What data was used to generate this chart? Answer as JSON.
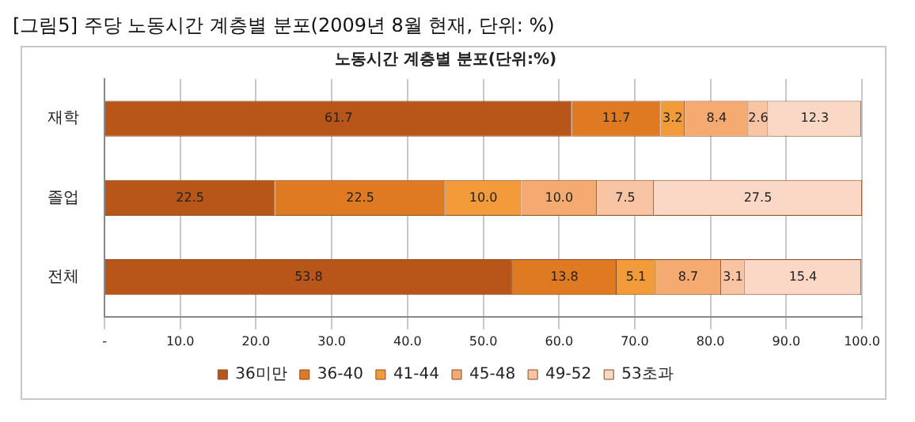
{
  "chart_data": {
    "type": "bar",
    "orientation": "horizontal",
    "stacked": true,
    "title": "[그림5] 주당 노동시간 계층별 분포(2009년 8월 현재, 단위: %)",
    "subtitle": "노동시간 계층별 분포(단위:%)",
    "categories": [
      "재학",
      "졸업",
      "전체"
    ],
    "series": [
      {
        "name": "36미만",
        "color": "#b8561a",
        "values": [
          61.7,
          22.5,
          53.8
        ],
        "value_labels": [
          "61.7",
          "22.5",
          "53.8"
        ]
      },
      {
        "name": "36-40",
        "color": "#e07a22",
        "values": [
          11.7,
          22.5,
          13.8
        ],
        "value_labels": [
          "11.7",
          "22.5",
          "13.8"
        ]
      },
      {
        "name": "41-44",
        "color": "#f39a3a",
        "values": [
          3.2,
          10.0,
          5.1
        ],
        "value_labels": [
          "3.2",
          "10.0",
          "5.1"
        ]
      },
      {
        "name": "45-48",
        "color": "#f5aa72",
        "values": [
          8.4,
          10.0,
          8.7
        ],
        "value_labels": [
          "8.4",
          "10.0",
          "8.7"
        ]
      },
      {
        "name": "49-52",
        "color": "#f8c4a4",
        "values": [
          2.6,
          7.5,
          3.1
        ],
        "value_labels": [
          "2.6",
          "7.5",
          "3.1"
        ]
      },
      {
        "name": "53초과",
        "color": "#fbd8c6",
        "values": [
          12.3,
          27.5,
          15.4
        ],
        "value_labels": [
          "12.3",
          "27.5",
          "15.4"
        ]
      }
    ],
    "xlim": [
      0,
      100
    ],
    "xticks": [
      {
        "value": 0,
        "label": "-"
      },
      {
        "value": 10,
        "label": "10.0"
      },
      {
        "value": 20,
        "label": "20.0"
      },
      {
        "value": 30,
        "label": "30.0"
      },
      {
        "value": 40,
        "label": "40.0"
      },
      {
        "value": 50,
        "label": "50.0"
      },
      {
        "value": 60,
        "label": "60.0"
      },
      {
        "value": 70,
        "label": "70.0"
      },
      {
        "value": 80,
        "label": "80.0"
      },
      {
        "value": 90,
        "label": "90.0"
      },
      {
        "value": 100,
        "label": "100.0"
      }
    ],
    "grid": "x",
    "legend": "bottom"
  }
}
